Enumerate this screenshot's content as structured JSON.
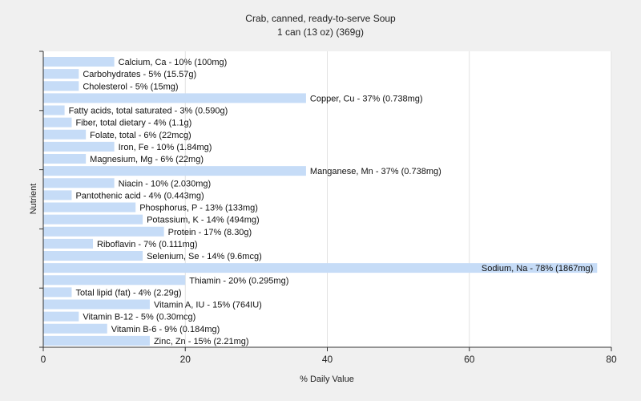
{
  "chart_data": {
    "type": "bar",
    "orientation": "horizontal",
    "title": "Crab, canned, ready-to-serve Soup",
    "subtitle": "1 can (13 oz) (369g)",
    "xlabel": "% Daily Value",
    "ylabel": "Nutrient",
    "xlim": [
      0,
      80
    ],
    "xticks": [
      0,
      20,
      40,
      60,
      80
    ],
    "grid": true,
    "bar_color": "#c6dcf7",
    "categories": [
      "Calcium, Ca",
      "Carbohydrates",
      "Cholesterol",
      "Copper, Cu",
      "Fatty acids, total saturated",
      "Fiber, total dietary",
      "Folate, total",
      "Iron, Fe",
      "Magnesium, Mg",
      "Manganese, Mn",
      "Niacin",
      "Pantothenic acid",
      "Phosphorus, P",
      "Potassium, K",
      "Protein",
      "Riboflavin",
      "Selenium, Se",
      "Sodium, Na",
      "Thiamin",
      "Total lipid (fat)",
      "Vitamin A, IU",
      "Vitamin B-12",
      "Vitamin B-6",
      "Zinc, Zn"
    ],
    "values": [
      10,
      5,
      5,
      37,
      3,
      4,
      6,
      10,
      6,
      37,
      10,
      4,
      13,
      14,
      17,
      7,
      14,
      78,
      20,
      4,
      15,
      5,
      9,
      15
    ],
    "labels": [
      "Calcium, Ca - 10% (100mg)",
      "Carbohydrates - 5% (15.57g)",
      "Cholesterol - 5% (15mg)",
      "Copper, Cu - 37% (0.738mg)",
      "Fatty acids, total saturated - 3% (0.590g)",
      "Fiber, total dietary - 4% (1.1g)",
      "Folate, total - 6% (22mcg)",
      "Iron, Fe - 10% (1.84mg)",
      "Magnesium, Mg - 6% (22mg)",
      "Manganese, Mn - 37% (0.738mg)",
      "Niacin - 10% (2.030mg)",
      "Pantothenic acid - 4% (0.443mg)",
      "Phosphorus, P - 13% (133mg)",
      "Potassium, K - 14% (494mg)",
      "Protein - 17% (8.30g)",
      "Riboflavin - 7% (0.111mg)",
      "Selenium, Se - 14% (9.6mcg)",
      "Sodium, Na - 78% (1867mg)",
      "Thiamin - 20% (0.295mg)",
      "Total lipid (fat) - 4% (2.29g)",
      "Vitamin A, IU - 15% (764IU)",
      "Vitamin B-12 - 5% (0.30mcg)",
      "Vitamin B-6 - 9% (0.184mg)",
      "Zinc, Zn - 15% (2.21mg)"
    ]
  }
}
